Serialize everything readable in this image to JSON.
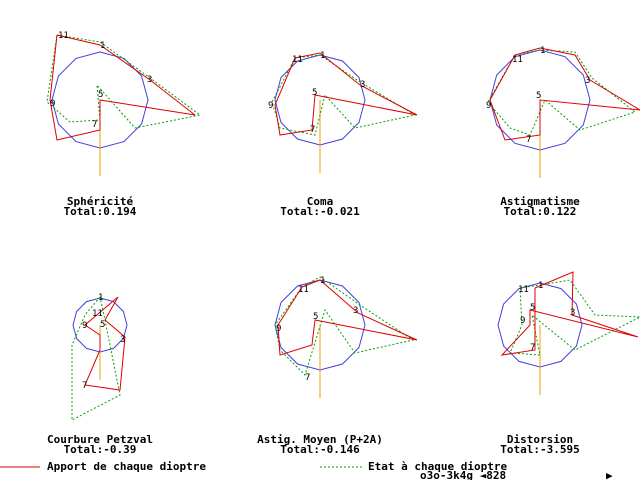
{
  "panels": [
    {
      "title": "Sphéricité",
      "total": "Total:0.194",
      "point_labels": [
        "11",
        "1",
        "3",
        "5",
        "7",
        "9"
      ]
    },
    {
      "title": "Coma",
      "total": "Total:-0.021",
      "point_labels": [
        "11",
        "1",
        "3",
        "5",
        "7",
        "9"
      ]
    },
    {
      "title": "Astigmatisme",
      "total": "Total:0.122",
      "point_labels": [
        "11",
        "1",
        "3",
        "5",
        "7",
        "9"
      ]
    },
    {
      "title": "Courbure Petzval",
      "total": "Total:-0.39",
      "point_labels": [
        "1",
        "11",
        "3",
        "5",
        "7",
        "9"
      ]
    },
    {
      "title": "Astig. Moyen (P+2A)",
      "total": "Total:-0.146",
      "point_labels": [
        "11",
        "1",
        "3",
        "5",
        "7",
        "9"
      ]
    },
    {
      "title": "Distorsion",
      "total": "Total:-3.595",
      "point_labels": [
        "11",
        "1",
        "3",
        "5",
        "7",
        "9"
      ]
    }
  ],
  "legend": {
    "contribution": "Apport de chaque dioptre",
    "state": "Etat à chaque dioptre"
  },
  "status": {
    "code": "o3o-3k4g ◄828",
    "arrow": "▶"
  }
}
